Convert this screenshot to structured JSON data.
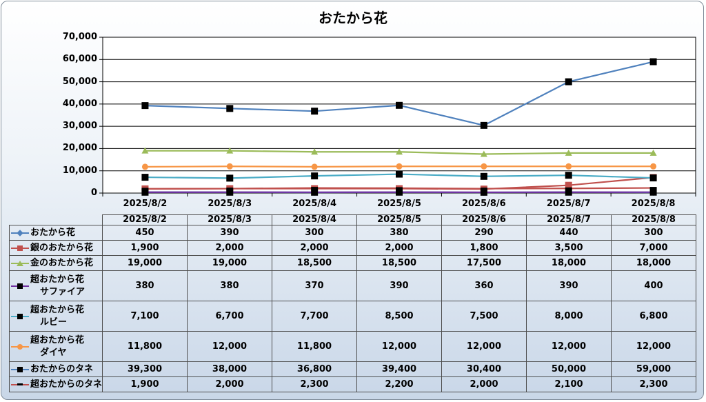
{
  "chart_data": {
    "type": "line",
    "title": "おたから花",
    "categories": [
      "2025/8/2",
      "2025/8/3",
      "2025/8/4",
      "2025/8/5",
      "2025/8/6",
      "2025/8/7",
      "2025/8/8"
    ],
    "ylim": [
      0,
      70000
    ],
    "yticks": [
      "0",
      "10,000",
      "20,000",
      "30,000",
      "40,000",
      "50,000",
      "60,000",
      "70,000"
    ],
    "grid": "horizontal",
    "legend": "data table",
    "series": [
      {
        "name": "おたから花",
        "name_lines": [
          "おたから花"
        ],
        "values": [
          450,
          390,
          300,
          380,
          290,
          440,
          300
        ],
        "labels": [
          "450",
          "390",
          "300",
          "380",
          "290",
          "440",
          "300"
        ],
        "color": "#4f81bd",
        "marker": "diamond",
        "marker_color": "#4f81bd"
      },
      {
        "name": "銀のおたから花",
        "name_lines": [
          "銀のおたから花"
        ],
        "values": [
          1900,
          2000,
          2000,
          2000,
          1800,
          3500,
          7000
        ],
        "labels": [
          "1,900",
          "2,000",
          "2,000",
          "2,000",
          "1,800",
          "3,500",
          "7,000"
        ],
        "color": "#c0504d",
        "marker": "square",
        "marker_color": "#c0504d"
      },
      {
        "name": "金のおたから花",
        "name_lines": [
          "金のおたから花"
        ],
        "values": [
          19000,
          19000,
          18500,
          18500,
          17500,
          18000,
          18000
        ],
        "labels": [
          "19,000",
          "19,000",
          "18,500",
          "18,500",
          "17,500",
          "18,000",
          "18,000"
        ],
        "color": "#9bbb59",
        "marker": "triangle",
        "marker_color": "#9bbb59"
      },
      {
        "name": "超おたから花サファイア",
        "name_lines": [
          "超おたから花",
          "サファイア"
        ],
        "values": [
          380,
          380,
          370,
          390,
          360,
          390,
          400
        ],
        "labels": [
          "380",
          "380",
          "370",
          "390",
          "360",
          "390",
          "400"
        ],
        "color": "#7030a0",
        "marker": "square",
        "marker_color": "#000000"
      },
      {
        "name": "超おたから花ルビー",
        "name_lines": [
          "超おたから花",
          "ルビー"
        ],
        "values": [
          7100,
          6700,
          7700,
          8500,
          7500,
          8000,
          6800
        ],
        "labels": [
          "7,100",
          "6,700",
          "7,700",
          "8,500",
          "7,500",
          "8,000",
          "6,800"
        ],
        "color": "#4bacc6",
        "marker": "square",
        "marker_color": "#000000"
      },
      {
        "name": "超おたから花ダイヤ",
        "name_lines": [
          "超おたから花",
          "ダイヤ"
        ],
        "values": [
          11800,
          12000,
          11800,
          12000,
          12000,
          12000,
          12000
        ],
        "labels": [
          "11,800",
          "12,000",
          "11,800",
          "12,000",
          "12,000",
          "12,000",
          "12,000"
        ],
        "color": "#f79646",
        "marker": "circle",
        "marker_color": "#f79646"
      },
      {
        "name": "おたからのタネ",
        "name_lines": [
          "おたからのタネ"
        ],
        "values": [
          39300,
          38000,
          36800,
          39400,
          30400,
          50000,
          59000
        ],
        "labels": [
          "39,300",
          "38,000",
          "36,800",
          "39,400",
          "30,400",
          "50,000",
          "59,000"
        ],
        "color": "#4f81bd",
        "marker": "square",
        "marker_color": "#000000"
      },
      {
        "name": "超おたからのタネ",
        "name_lines": [
          "超おたからのタネ"
        ],
        "values": [
          1900,
          2000,
          2300,
          2200,
          2000,
          2100,
          2300
        ],
        "labels": [
          "1,900",
          "2,000",
          "2,300",
          "2,200",
          "2,000",
          "2,100",
          "2,300"
        ],
        "color": "#c0504d",
        "marker": "dash",
        "marker_color": "#000000"
      }
    ]
  }
}
